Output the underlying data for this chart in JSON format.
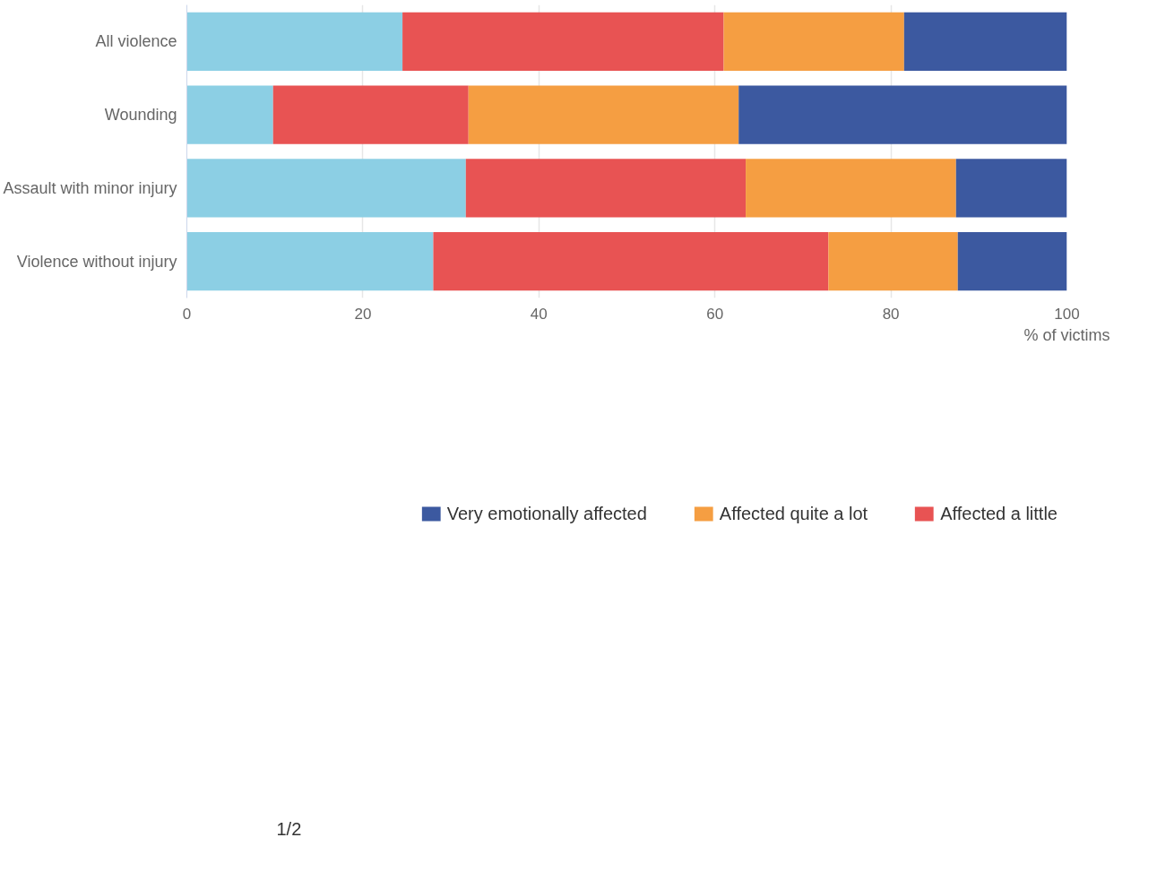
{
  "chart_data": {
    "type": "bar",
    "orientation": "horizontal",
    "stacked": true,
    "categories": [
      "All violence",
      "Wounding",
      "Assault with minor injury",
      "Violence without injury"
    ],
    "series": [
      {
        "color": "#8ccfe4",
        "values": [
          24.5,
          9.8,
          31.7,
          28.0
        ]
      },
      {
        "name": "Affected a little",
        "color": "#e85353",
        "values": [
          36.5,
          22.2,
          31.8,
          44.9
        ]
      },
      {
        "name": "Affected quite a lot",
        "color": "#f59e42",
        "values": [
          20.5,
          30.7,
          23.9,
          14.7
        ]
      },
      {
        "name": "Very emotionally affected",
        "color": "#3c59a0",
        "values": [
          18.5,
          37.3,
          12.6,
          12.4
        ]
      }
    ],
    "xlabel": "% of victims",
    "xlim": [
      0,
      100
    ],
    "xticks": [
      0,
      20,
      40,
      60,
      80,
      100
    ],
    "grid": "x",
    "legend": "bottom",
    "annotations": [
      "1/2"
    ]
  }
}
